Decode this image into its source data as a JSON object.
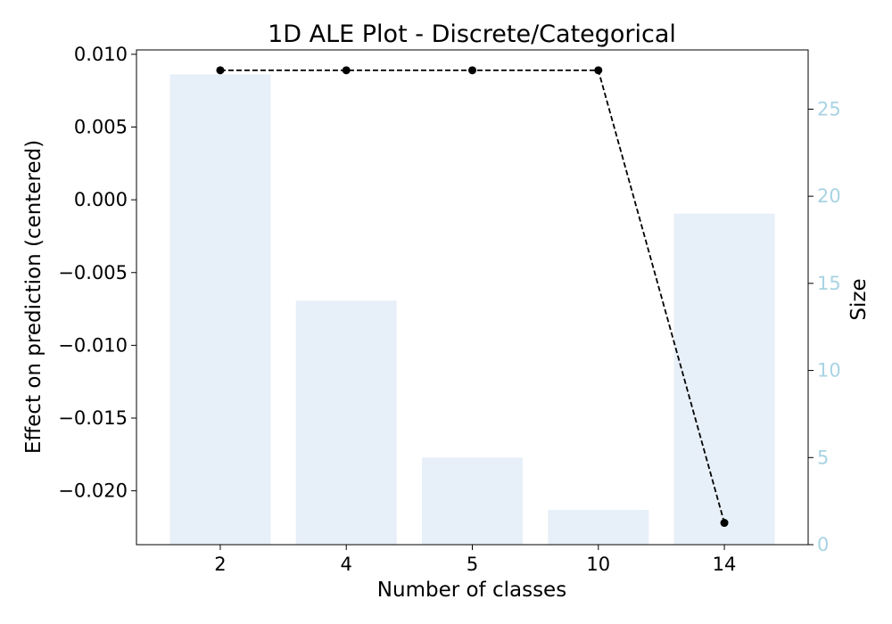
{
  "chart_data": {
    "type": "bar+line",
    "title": "1D ALE Plot - Discrete/Categorical",
    "xlabel": "Number of classes",
    "ylabel": "Effect on prediction (centered)",
    "y2label": "Size",
    "categories": [
      "2",
      "4",
      "5",
      "10",
      "14"
    ],
    "bar_series": {
      "axis": "right",
      "values": [
        27,
        14,
        5,
        2,
        19
      ]
    },
    "line_series": {
      "axis": "left",
      "values": [
        0.0089,
        0.0089,
        0.0089,
        0.0089,
        -0.0222
      ]
    },
    "ylim": [
      -0.0237,
      0.0103
    ],
    "y2lim": [
      0,
      28.4
    ],
    "yticks": [
      -0.02,
      -0.015,
      -0.01,
      -0.005,
      0.0,
      0.005,
      0.01
    ],
    "ytick_labels": [
      "−0.020",
      "−0.015",
      "−0.010",
      "−0.005",
      "0.000",
      "0.005",
      "0.010"
    ],
    "y2ticks": [
      0,
      5,
      10,
      15,
      20,
      25
    ],
    "y2tick_labels": [
      "0",
      "5",
      "10",
      "15",
      "20",
      "25"
    ],
    "grid": false,
    "colors": {
      "bar": "#e7eff8",
      "line": "#000000",
      "right_axis": "#a8d3e3",
      "axis": "#000000"
    }
  }
}
